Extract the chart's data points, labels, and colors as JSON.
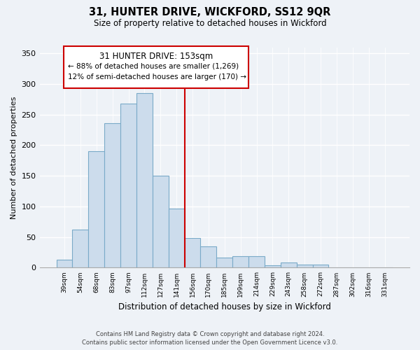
{
  "title": "31, HUNTER DRIVE, WICKFORD, SS12 9QR",
  "subtitle": "Size of property relative to detached houses in Wickford",
  "xlabel": "Distribution of detached houses by size in Wickford",
  "ylabel": "Number of detached properties",
  "categories": [
    "39sqm",
    "54sqm",
    "68sqm",
    "83sqm",
    "97sqm",
    "112sqm",
    "127sqm",
    "141sqm",
    "156sqm",
    "170sqm",
    "185sqm",
    "199sqm",
    "214sqm",
    "229sqm",
    "243sqm",
    "258sqm",
    "272sqm",
    "287sqm",
    "302sqm",
    "316sqm",
    "331sqm"
  ],
  "values": [
    13,
    62,
    190,
    236,
    268,
    285,
    150,
    97,
    48,
    35,
    17,
    19,
    19,
    4,
    9,
    5,
    5,
    1,
    0,
    0,
    1
  ],
  "bar_color": "#ccdcec",
  "bar_edge_color": "#7aaac8",
  "vline_color": "#cc0000",
  "annotation_title": "31 HUNTER DRIVE: 153sqm",
  "annotation_line1": "← 88% of detached houses are smaller (1,269)",
  "annotation_line2": "12% of semi-detached houses are larger (170) →",
  "annotation_box_color": "#ffffff",
  "annotation_box_edge": "#cc0000",
  "ylim": [
    0,
    360
  ],
  "yticks": [
    0,
    50,
    100,
    150,
    200,
    250,
    300,
    350
  ],
  "footer1": "Contains HM Land Registry data © Crown copyright and database right 2024.",
  "footer2": "Contains public sector information licensed under the Open Government Licence v3.0.",
  "bg_color": "#eef2f7"
}
